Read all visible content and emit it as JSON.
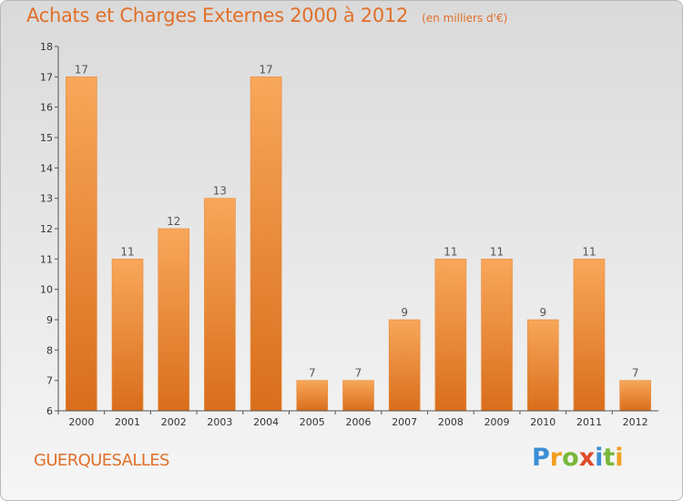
{
  "chart_data": {
    "type": "bar",
    "title": "Achats et Charges Externes 2000 à 2012",
    "unit": "(en milliers d'€)",
    "xlabel": "",
    "ylabel": "",
    "categories": [
      "2000",
      "2001",
      "2002",
      "2003",
      "2004",
      "2005",
      "2006",
      "2007",
      "2008",
      "2009",
      "2010",
      "2011",
      "2012"
    ],
    "values": [
      17,
      11,
      12,
      13,
      17,
      7,
      7,
      9,
      11,
      11,
      9,
      11,
      7
    ],
    "ylim": [
      6,
      18
    ],
    "yticks": [
      6,
      7,
      8,
      9,
      10,
      11,
      12,
      13,
      14,
      15,
      16,
      17,
      18
    ],
    "grid": false,
    "data_labels": true
  },
  "commune": "GUERQUESALLES",
  "logo": {
    "letters": [
      "P",
      "r",
      "o",
      "x",
      "i",
      "t",
      "i"
    ],
    "colors": [
      "#3a8fd6",
      "#f0a020",
      "#78b83a",
      "#e04a2a",
      "#3a8fd6",
      "#78b83a",
      "#f0a020"
    ]
  },
  "colors": {
    "bar_top": "#f8a75a",
    "bar_bottom": "#d96e1c",
    "text_accent": "#e0702a",
    "axis": "#555555"
  }
}
